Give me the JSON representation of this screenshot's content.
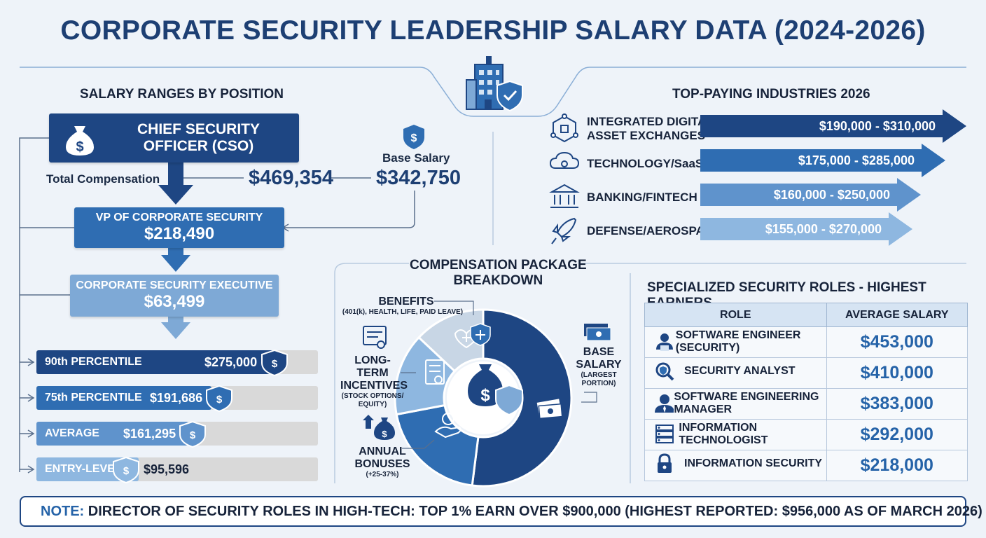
{
  "title": "CORPORATE SECURITY LEADERSHIP SALARY DATA (2024-2026)",
  "positions": {
    "title": "SALARY RANGES BY POSITION",
    "cso": {
      "label_line1": "CHIEF SECURITY",
      "label_line2": "OFFICER (CSO)"
    },
    "total_comp_label": "Total Compensation",
    "total_comp_value": "$469,354",
    "base_salary_label": "Base Salary",
    "base_salary_value": "$342,750",
    "vp": {
      "label": "VP OF CORPORATE SECURITY",
      "value": "$218,490"
    },
    "exec": {
      "label": "CORPORATE SECURITY EXECUTIVE",
      "value": "$63,499"
    }
  },
  "percentiles": [
    {
      "label": "90th PERCENTILE",
      "value": "$275,000",
      "amount": 275000,
      "color": "#1e4683"
    },
    {
      "label": "75th PERCENTILE",
      "value": "$191,686",
      "amount": 191686,
      "color": "#2f6db2"
    },
    {
      "label": "AVERAGE",
      "value": "$161,295",
      "amount": 161295,
      "color": "#5f93cc"
    },
    {
      "label": "ENTRY-LEVEL",
      "value": "$95,596",
      "amount": 95596,
      "color": "#8eb7e0"
    }
  ],
  "industries": {
    "title": "TOP-PAYING INDUSTRIES 2026",
    "items": [
      {
        "label_line1": "INTEGRATED DIGITAL",
        "label_line2": "ASSET EXCHANGES",
        "range": "$190,000 - $310,000",
        "icon": "blockchain-icon",
        "color": "#1e4683"
      },
      {
        "label_line1": "TECHNOLOGY/SaaS",
        "label_line2": "",
        "range": "$175,000 - $285,000",
        "icon": "cloud-gear-icon",
        "color": "#2f6db2"
      },
      {
        "label_line1": "BANKING/FINTECH",
        "label_line2": "",
        "range": "$160,000 - $250,000",
        "icon": "bank-icon",
        "color": "#5f93cc"
      },
      {
        "label_line1": "DEFENSE/AEROSPACE",
        "label_line2": "",
        "range": "$155,000 - $270,000",
        "icon": "rocket-icon",
        "color": "#8eb7e0"
      }
    ]
  },
  "compensation": {
    "title_line1": "COMPENSATION PACKAGE",
    "title_line2": "BREAKDOWN",
    "benefits_label": "BENEFITS",
    "benefits_sub": "(401(k), HEALTH, LIFE, PAID LEAVE)",
    "lti_label_line1": "LONG-TERM",
    "lti_label_line2": "INCENTIVES",
    "lti_sub_line1": "(STOCK OPTIONS/",
    "lti_sub_line2": "EQUITY)",
    "bonus_label_line1": "ANNUAL",
    "bonus_label_line2": "BONUSES",
    "bonus_sub": "(+25-37%)",
    "base_label_line1": "BASE",
    "base_label_line2": "SALARY",
    "base_sub_line1": "(LARGEST",
    "base_sub_line2": "PORTION)"
  },
  "chart_data": {
    "type": "pie",
    "title": "COMPENSATION PACKAGE BREAKDOWN",
    "slices": [
      {
        "name": "BASE SALARY",
        "value": 52,
        "color": "#1e4683"
      },
      {
        "name": "ANNUAL BONUSES",
        "value": 20,
        "color": "#2f6db2"
      },
      {
        "name": "LONG-TERM INCENTIVES",
        "value": 15,
        "color": "#8eb7e0"
      },
      {
        "name": "BENEFITS",
        "value": 13,
        "color": "#c8d6e5"
      }
    ]
  },
  "roles": {
    "title": "SPECIALIZED SECURITY ROLES - HIGHEST EARNERS",
    "col_role": "ROLE",
    "col_salary": "AVERAGE SALARY",
    "rows": [
      {
        "role": "SOFTWARE ENGINEER (SECURITY)",
        "salary": "$453,000",
        "icon": "developer-icon"
      },
      {
        "role": "SECURITY ANALYST",
        "salary": "$410,000",
        "icon": "magnifier-shield-icon"
      },
      {
        "role": "SOFTWARE ENGINEERING MANAGER",
        "salary": "$383,000",
        "icon": "manager-icon"
      },
      {
        "role": "INFORMATION TECHNOLOGIST",
        "salary": "$292,000",
        "icon": "server-icon"
      },
      {
        "role": "INFORMATION SECURITY",
        "salary": "$218,000",
        "icon": "lock-icon"
      }
    ]
  },
  "note": {
    "key": "NOTE:",
    "text": "DIRECTOR OF SECURITY ROLES IN HIGH-TECH: TOP 1% EARN OVER $900,000 (HIGHEST REPORTED: $956,000 AS OF MARCH 2026)"
  }
}
